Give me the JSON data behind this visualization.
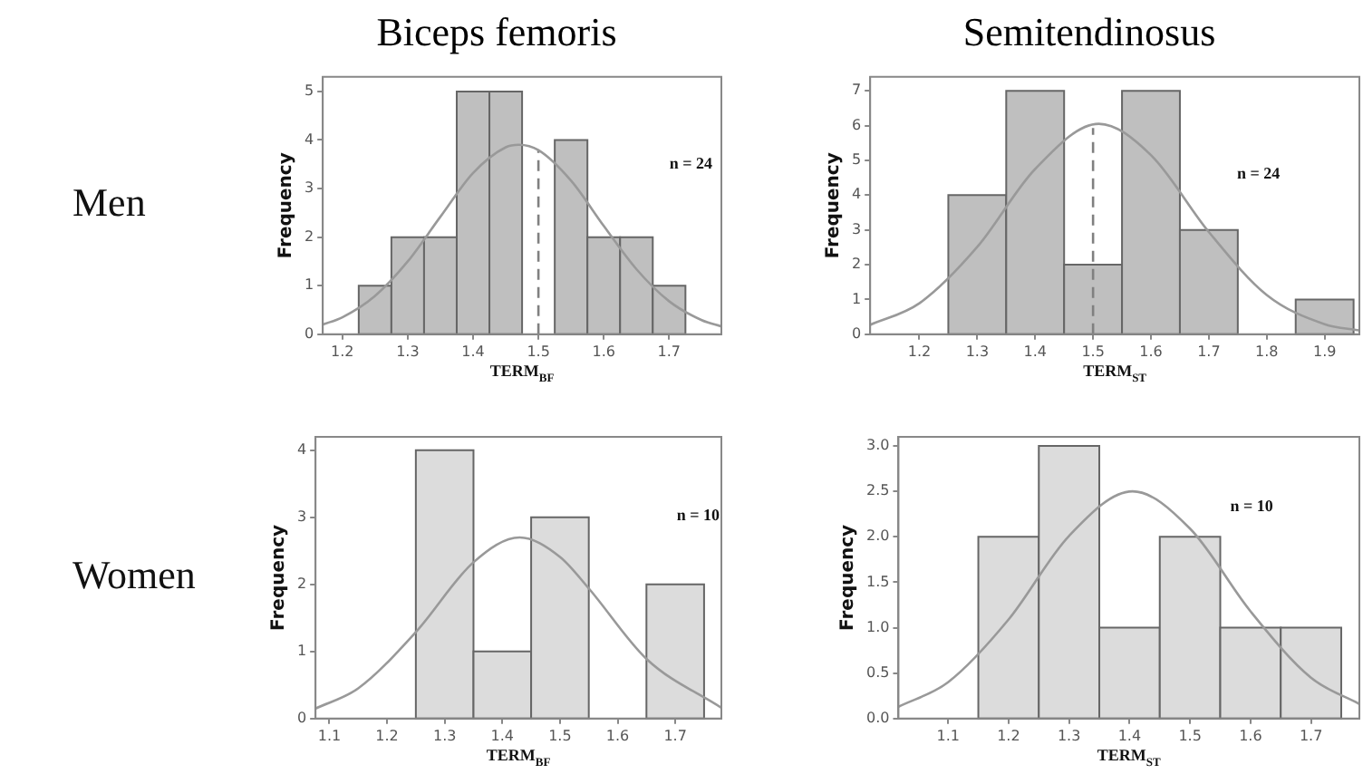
{
  "chart_data": [
    {
      "type": "histogram",
      "title": "Biceps femoris",
      "xlabel": "TERM$_{BF}$",
      "ylabel": "Frequency",
      "annotations": [
        "Men",
        "n = 24"
      ],
      "bins": [
        1.225,
        1.275,
        1.325,
        1.375,
        1.425,
        1.475,
        1.525,
        1.575,
        1.625,
        1.675,
        1.725
      ],
      "values": [
        1,
        2,
        2,
        5,
        5,
        0,
        4,
        2,
        2,
        1
      ],
      "color": "#bfbfbf",
      "xlim": [
        1.17,
        1.78
      ],
      "xticks": [
        1.2,
        1.3,
        1.4,
        1.5,
        1.6,
        1.7
      ],
      "ylim": [
        0,
        5.3
      ],
      "yticks": [
        0,
        1,
        2,
        3,
        4,
        5
      ],
      "ref_lines": [
        {
          "axis": "x",
          "value": 1.5,
          "color": "#808080",
          "line_style": "dashed"
        }
      ],
      "series": [
        {
          "type": "line",
          "color": "#999999",
          "marker": "none",
          "x": [
            1.17,
            1.2,
            1.25,
            1.3,
            1.35,
            1.4,
            1.45,
            1.47,
            1.5,
            1.55,
            1.6,
            1.65,
            1.7,
            1.75,
            1.78
          ],
          "values": [
            0.2,
            0.35,
            0.79,
            1.5,
            2.42,
            3.32,
            3.85,
            3.9,
            3.79,
            3.16,
            2.23,
            1.34,
            0.68,
            0.29,
            0.16
          ]
        }
      ]
    },
    {
      "type": "histogram",
      "title": "Semitendinosus",
      "xlabel": "TERM$_{ST}$",
      "ylabel": "Frequency",
      "annotations": [
        "n = 24"
      ],
      "bins": [
        1.25,
        1.35,
        1.45,
        1.55,
        1.65,
        1.75,
        1.85,
        1.95
      ],
      "values": [
        4,
        7,
        2,
        7,
        3,
        0,
        1
      ],
      "color": "#bfbfbf",
      "xlim": [
        1.115,
        1.96
      ],
      "xticks": [
        1.2,
        1.3,
        1.4,
        1.5,
        1.6,
        1.7,
        1.8,
        1.9
      ],
      "ylim": [
        0,
        7.4
      ],
      "yticks": [
        0,
        1,
        2,
        3,
        4,
        5,
        6,
        7
      ],
      "ref_lines": [
        {
          "axis": "x",
          "value": 1.5,
          "color": "#808080",
          "line_style": "dashed"
        }
      ],
      "series": [
        {
          "type": "line",
          "color": "#999999",
          "marker": "none",
          "x": [
            1.115,
            1.2,
            1.3,
            1.4,
            1.51,
            1.6,
            1.7,
            1.8,
            1.9,
            1.96
          ],
          "values": [
            0.27,
            0.89,
            2.51,
            4.75,
            6.05,
            5.15,
            2.94,
            1.13,
            0.29,
            0.11
          ]
        }
      ]
    },
    {
      "type": "histogram",
      "xlabel": "TERM$_{BF}$",
      "ylabel": "Frequency",
      "annotations": [
        "Women",
        "n = 10"
      ],
      "bins": [
        1.25,
        1.35,
        1.45,
        1.55,
        1.65,
        1.75
      ],
      "values": [
        4,
        1,
        3,
        0,
        2
      ],
      "color": "#dcdcdc",
      "xlim": [
        1.076,
        1.78
      ],
      "xticks": [
        1.1,
        1.2,
        1.3,
        1.4,
        1.5,
        1.6,
        1.7
      ],
      "ylim": [
        0,
        4.2
      ],
      "yticks": [
        0,
        1,
        2,
        3,
        4
      ],
      "series": [
        {
          "type": "line",
          "color": "#999999",
          "marker": "none",
          "x": [
            1.076,
            1.15,
            1.25,
            1.35,
            1.43,
            1.5,
            1.55,
            1.65,
            1.78
          ],
          "values": [
            0.15,
            0.45,
            1.29,
            2.33,
            2.7,
            2.41,
            1.94,
            0.89,
            0.16
          ]
        }
      ]
    },
    {
      "type": "histogram",
      "xlabel": "TERM$_{ST}$",
      "ylabel": "Frequency",
      "annotations": [
        "n = 10"
      ],
      "bins": [
        1.15,
        1.25,
        1.35,
        1.45,
        1.55,
        1.65,
        1.75
      ],
      "values": [
        2,
        3,
        1,
        2,
        1,
        1
      ],
      "color": "#dcdcdc",
      "xlim": [
        1.018,
        1.78
      ],
      "xticks": [
        1.1,
        1.2,
        1.3,
        1.4,
        1.5,
        1.6,
        1.7
      ],
      "ylim": [
        0,
        3.1
      ],
      "yticks": [
        {
          "value": 0,
          "label": "0.0"
        },
        {
          "value": 0.5,
          "label": "0.5"
        },
        {
          "value": 1,
          "label": "1.0"
        },
        {
          "value": 1.5,
          "label": "1.5"
        },
        {
          "value": 2,
          "label": "2.0"
        },
        {
          "value": 2.5,
          "label": "2.5"
        },
        {
          "value": 3,
          "label": "3.0"
        }
      ],
      "series": [
        {
          "type": "line",
          "color": "#999999",
          "marker": "none",
          "x": [
            1.018,
            1.1,
            1.2,
            1.3,
            1.405,
            1.5,
            1.6,
            1.7,
            1.78
          ],
          "values": [
            0.13,
            0.4,
            1.09,
            2.01,
            2.5,
            2.09,
            1.18,
            0.45,
            0.16
          ]
        }
      ]
    }
  ]
}
